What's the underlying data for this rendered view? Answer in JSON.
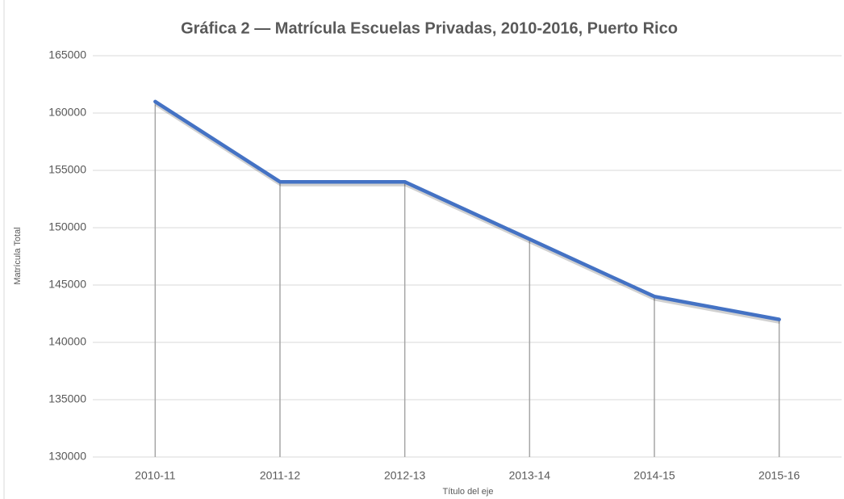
{
  "chart_data": {
    "type": "line",
    "title": "Gráfica 2 — Matrícula Escuelas Privadas, 2010-2016, Puerto Rico",
    "x_label": "Título del eje",
    "y_label": "Matrícula Total",
    "categories": [
      "2010-11",
      "2011-12",
      "2012-13",
      "2013-14",
      "2014-15",
      "2015-16"
    ],
    "series": [
      {
        "name": "Matrícula Total",
        "color": "#4472c4",
        "values": [
          161000,
          154000,
          154000,
          149000,
          144000,
          142000
        ]
      }
    ],
    "ylim": [
      130000,
      165000
    ],
    "yticks": [
      130000,
      135000,
      140000,
      145000,
      150000,
      155000,
      160000,
      165000
    ],
    "grid": true,
    "drop_lines": true
  }
}
